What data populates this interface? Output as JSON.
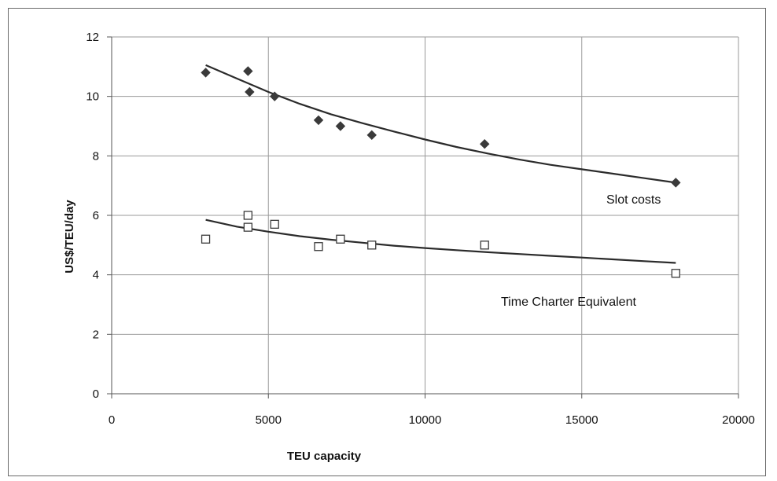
{
  "chart_data": {
    "type": "scatter",
    "xlabel": "TEU capacity",
    "ylabel": "US$/TEU/day",
    "xlim": [
      0,
      20000
    ],
    "ylim": [
      0,
      12
    ],
    "x_ticks": [
      0,
      5000,
      10000,
      15000,
      20000
    ],
    "y_ticks": [
      0,
      2,
      4,
      6,
      8,
      10,
      12
    ],
    "grid": true,
    "series": [
      {
        "name": "Slot costs",
        "marker": "filled-diamond",
        "color": "#3a3a3a",
        "points": [
          {
            "x": 3000,
            "y": 10.8
          },
          {
            "x": 4350,
            "y": 10.85
          },
          {
            "x": 4400,
            "y": 10.15
          },
          {
            "x": 5200,
            "y": 10.0
          },
          {
            "x": 6600,
            "y": 9.2
          },
          {
            "x": 7300,
            "y": 9.0
          },
          {
            "x": 8300,
            "y": 8.7
          },
          {
            "x": 11900,
            "y": 8.4
          },
          {
            "x": 18000,
            "y": 7.1
          }
        ],
        "trendline": [
          {
            "x": 3000,
            "y": 11.05
          },
          {
            "x": 4000,
            "y": 10.6
          },
          {
            "x": 5000,
            "y": 10.15
          },
          {
            "x": 6000,
            "y": 9.75
          },
          {
            "x": 7000,
            "y": 9.4
          },
          {
            "x": 8000,
            "y": 9.1
          },
          {
            "x": 9000,
            "y": 8.82
          },
          {
            "x": 10000,
            "y": 8.55
          },
          {
            "x": 11000,
            "y": 8.3
          },
          {
            "x": 12000,
            "y": 8.08
          },
          {
            "x": 13000,
            "y": 7.88
          },
          {
            "x": 14000,
            "y": 7.7
          },
          {
            "x": 15000,
            "y": 7.55
          },
          {
            "x": 16000,
            "y": 7.4
          },
          {
            "x": 17000,
            "y": 7.25
          },
          {
            "x": 18000,
            "y": 7.1
          }
        ]
      },
      {
        "name": "Time Charter Equivalent",
        "marker": "hollow-square",
        "color": "#3a3a3a",
        "points": [
          {
            "x": 3000,
            "y": 5.2
          },
          {
            "x": 4350,
            "y": 6.0
          },
          {
            "x": 4350,
            "y": 5.6
          },
          {
            "x": 5200,
            "y": 5.7
          },
          {
            "x": 6600,
            "y": 4.95
          },
          {
            "x": 7300,
            "y": 5.2
          },
          {
            "x": 8300,
            "y": 5.0
          },
          {
            "x": 11900,
            "y": 5.0
          },
          {
            "x": 18000,
            "y": 4.05
          }
        ],
        "trendline": [
          {
            "x": 3000,
            "y": 5.85
          },
          {
            "x": 4000,
            "y": 5.62
          },
          {
            "x": 5000,
            "y": 5.45
          },
          {
            "x": 6000,
            "y": 5.3
          },
          {
            "x": 7000,
            "y": 5.18
          },
          {
            "x": 8000,
            "y": 5.08
          },
          {
            "x": 9000,
            "y": 4.98
          },
          {
            "x": 10000,
            "y": 4.9
          },
          {
            "x": 11000,
            "y": 4.83
          },
          {
            "x": 12000,
            "y": 4.76
          },
          {
            "x": 13000,
            "y": 4.7
          },
          {
            "x": 14000,
            "y": 4.64
          },
          {
            "x": 15000,
            "y": 4.58
          },
          {
            "x": 16000,
            "y": 4.52
          },
          {
            "x": 17000,
            "y": 4.46
          },
          {
            "x": 18000,
            "y": 4.4
          }
        ]
      }
    ],
    "annotations": [
      {
        "text": "Slot costs",
        "series": "Slot costs"
      },
      {
        "text": "Time Charter Equivalent",
        "series": "Time Charter Equivalent"
      }
    ]
  }
}
